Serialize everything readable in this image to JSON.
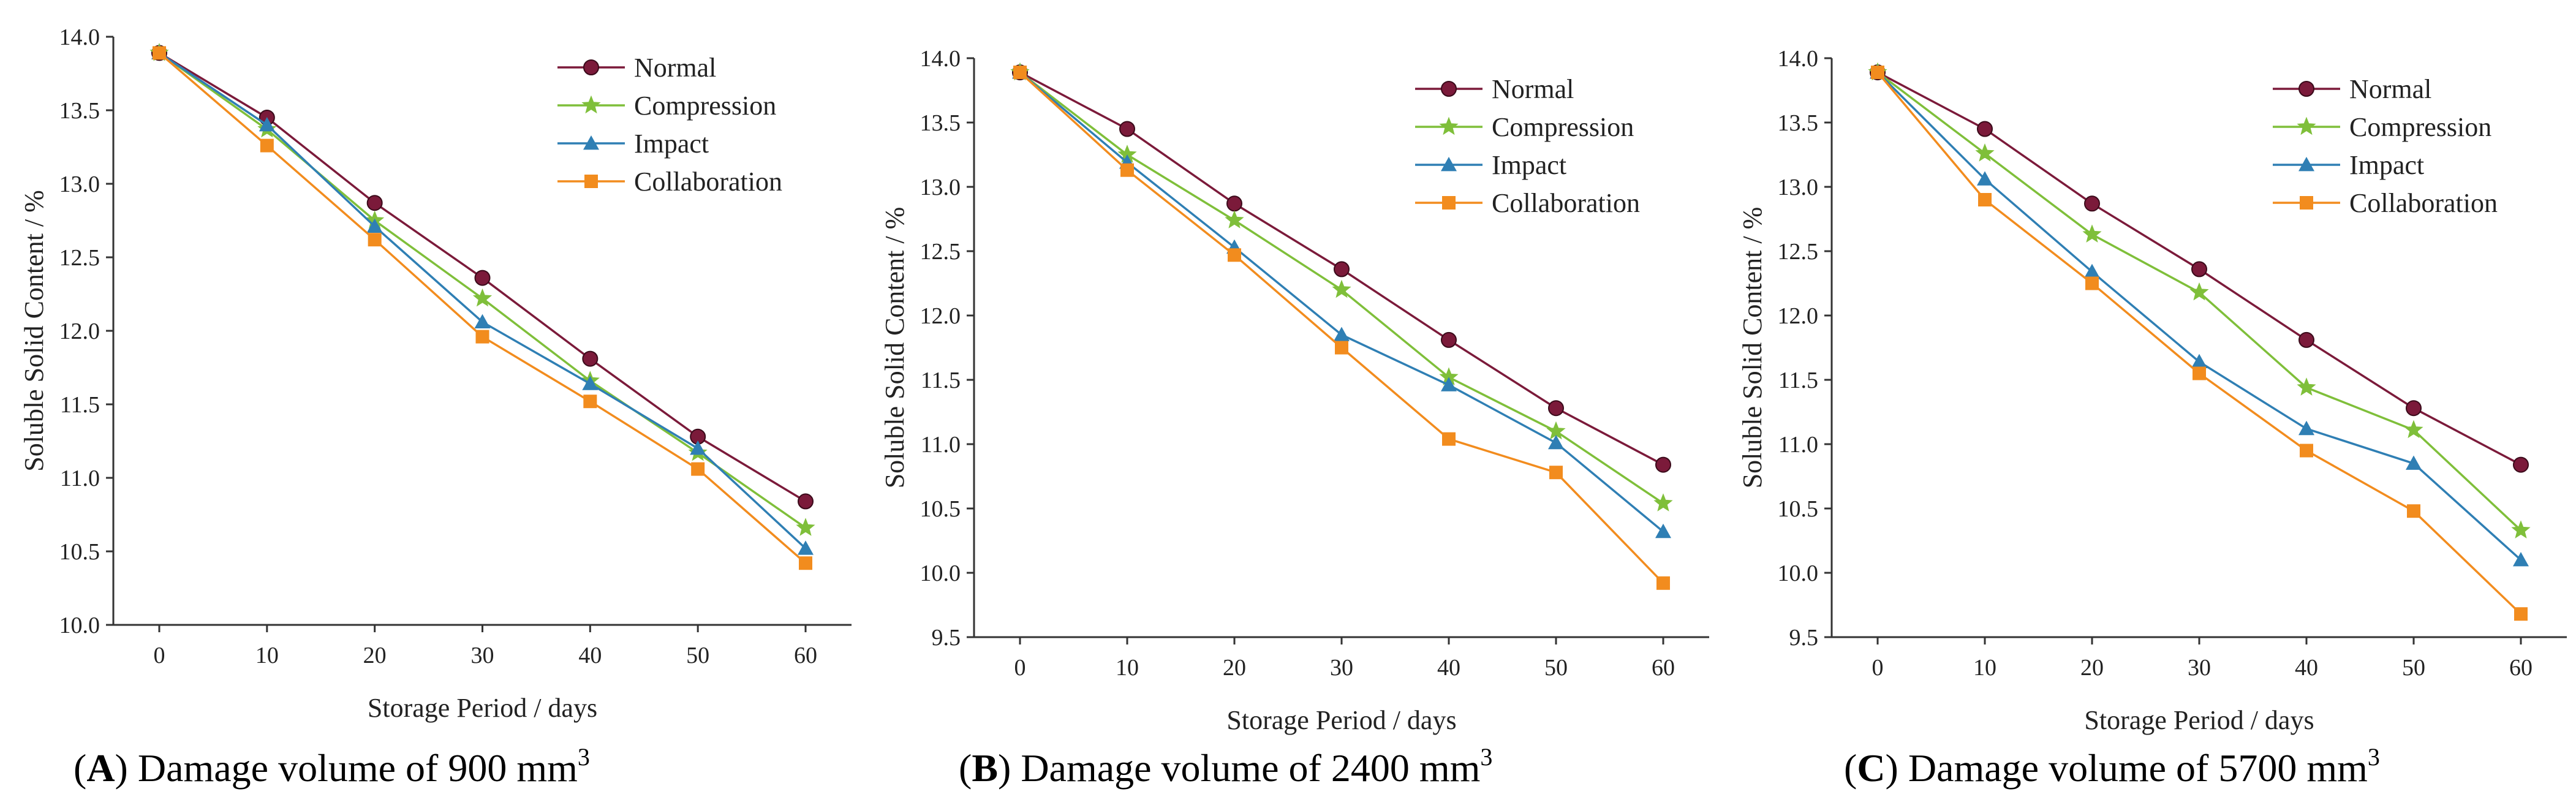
{
  "colors": {
    "Normal": "#7b1a3a",
    "Compression": "#7fbf3a",
    "Impact": "#2f7fb4",
    "Collaboration": "#f28c1e",
    "axis": "#333333"
  },
  "markers": {
    "Normal": "circle",
    "Compression": "star",
    "Impact": "triangle",
    "Collaboration": "square"
  },
  "chart_data": [
    {
      "type": "line",
      "panel": "A",
      "caption": {
        "open": "(",
        "letter": "A",
        "close": ")",
        "text": " Damage volume of 900 mm",
        "sup": "3"
      },
      "xlabel": "Storage Period / days",
      "ylabel": "Soluble Solid Content / %",
      "x": [
        0,
        10,
        20,
        30,
        40,
        50,
        60
      ],
      "ylim": [
        10.0,
        14.0
      ],
      "yticks": [
        "10.0",
        "10.5",
        "11.0",
        "11.5",
        "12.0",
        "12.5",
        "13.0",
        "13.5",
        "14.0"
      ],
      "xticks": [
        "0",
        "10",
        "20",
        "30",
        "40",
        "50",
        "60"
      ],
      "legend_position": "top-right",
      "series": [
        {
          "name": "Normal",
          "values": [
            13.89,
            13.45,
            12.87,
            12.36,
            11.81,
            11.28,
            10.84
          ]
        },
        {
          "name": "Compression",
          "values": [
            13.89,
            13.37,
            12.75,
            12.22,
            11.66,
            11.17,
            10.66
          ]
        },
        {
          "name": "Impact",
          "values": [
            13.89,
            13.4,
            12.71,
            12.06,
            11.64,
            11.2,
            10.52
          ]
        },
        {
          "name": "Collaboration",
          "values": [
            13.89,
            13.26,
            12.62,
            11.96,
            11.52,
            11.06,
            10.42
          ]
        }
      ]
    },
    {
      "type": "line",
      "panel": "B",
      "caption": {
        "open": "(",
        "letter": "B",
        "close": ")",
        "text": " Damage volume of 2400 mm",
        "sup": "3"
      },
      "xlabel": "Storage Period / days",
      "ylabel": "Soluble Solid Content / %",
      "x": [
        0,
        10,
        20,
        30,
        40,
        50,
        60
      ],
      "ylim": [
        9.5,
        14.0
      ],
      "yticks": [
        "9.5",
        "10.0",
        "10.5",
        "11.0",
        "11.5",
        "12.0",
        "12.5",
        "13.0",
        "13.5",
        "14.0"
      ],
      "xticks": [
        "0",
        "10",
        "20",
        "30",
        "40",
        "50",
        "60"
      ],
      "legend_position": "top-right",
      "series": [
        {
          "name": "Normal",
          "values": [
            13.89,
            13.45,
            12.87,
            12.36,
            11.81,
            11.28,
            10.84
          ]
        },
        {
          "name": "Compression",
          "values": [
            13.89,
            13.25,
            12.74,
            12.2,
            11.52,
            11.1,
            10.54
          ]
        },
        {
          "name": "Impact",
          "values": [
            13.89,
            13.19,
            12.53,
            11.85,
            11.46,
            11.01,
            10.32
          ]
        },
        {
          "name": "Collaboration",
          "values": [
            13.89,
            13.13,
            12.47,
            11.75,
            11.04,
            10.78,
            9.92
          ]
        }
      ]
    },
    {
      "type": "line",
      "panel": "C",
      "caption": {
        "open": "(",
        "letter": "C",
        "close": ")",
        "text": " Damage volume of 5700 mm",
        "sup": "3"
      },
      "xlabel": "Storage Period / days",
      "ylabel": "Soluble Solid Content / %",
      "x": [
        0,
        10,
        20,
        30,
        40,
        50,
        60
      ],
      "ylim": [
        9.5,
        14.0
      ],
      "yticks": [
        "9.5",
        "10.0",
        "10.5",
        "11.0",
        "11.5",
        "12.0",
        "12.5",
        "13.0",
        "13.5",
        "14.0"
      ],
      "xticks": [
        "0",
        "10",
        "20",
        "30",
        "40",
        "50",
        "60"
      ],
      "legend_position": "top-right",
      "series": [
        {
          "name": "Normal",
          "values": [
            13.89,
            13.45,
            12.87,
            12.36,
            11.81,
            11.28,
            10.84
          ]
        },
        {
          "name": "Compression",
          "values": [
            13.89,
            13.26,
            12.63,
            12.18,
            11.44,
            11.11,
            10.33
          ]
        },
        {
          "name": "Impact",
          "values": [
            13.89,
            13.06,
            12.34,
            11.64,
            11.12,
            10.85,
            10.1
          ]
        },
        {
          "name": "Collaboration",
          "values": [
            13.89,
            12.9,
            12.25,
            11.55,
            10.95,
            10.48,
            9.68
          ]
        }
      ]
    }
  ]
}
